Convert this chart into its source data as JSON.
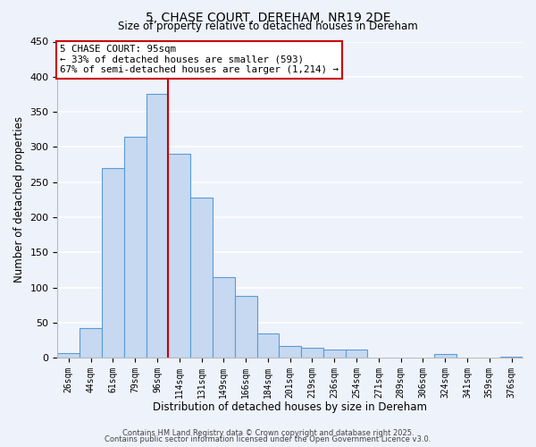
{
  "title": "5, CHASE COURT, DEREHAM, NR19 2DE",
  "subtitle": "Size of property relative to detached houses in Dereham",
  "xlabel": "Distribution of detached houses by size in Dereham",
  "ylabel": "Number of detached properties",
  "bar_labels": [
    "26sqm",
    "44sqm",
    "61sqm",
    "79sqm",
    "96sqm",
    "114sqm",
    "131sqm",
    "149sqm",
    "166sqm",
    "184sqm",
    "201sqm",
    "219sqm",
    "236sqm",
    "254sqm",
    "271sqm",
    "289sqm",
    "306sqm",
    "324sqm",
    "341sqm",
    "359sqm",
    "376sqm"
  ],
  "bar_values": [
    7,
    42,
    270,
    315,
    375,
    290,
    228,
    115,
    88,
    35,
    17,
    15,
    12,
    12,
    0,
    0,
    0,
    5,
    0,
    0,
    2
  ],
  "bar_color": "#c6d9f1",
  "bar_edge_color": "#5b9bd5",
  "vline_index": 4,
  "vline_color": "#cc0000",
  "annotation_title": "5 CHASE COURT: 95sqm",
  "annotation_line1": "← 33% of detached houses are smaller (593)",
  "annotation_line2": "67% of semi-detached houses are larger (1,214) →",
  "annotation_box_color": "#ffffff",
  "annotation_box_edge": "#cc0000",
  "ylim": [
    0,
    450
  ],
  "yticks": [
    0,
    50,
    100,
    150,
    200,
    250,
    300,
    350,
    400,
    450
  ],
  "footer1": "Contains HM Land Registry data © Crown copyright and database right 2025.",
  "footer2": "Contains public sector information licensed under the Open Government Licence v3.0.",
  "bg_color": "#eef2fb",
  "grid_color": "#ffffff"
}
